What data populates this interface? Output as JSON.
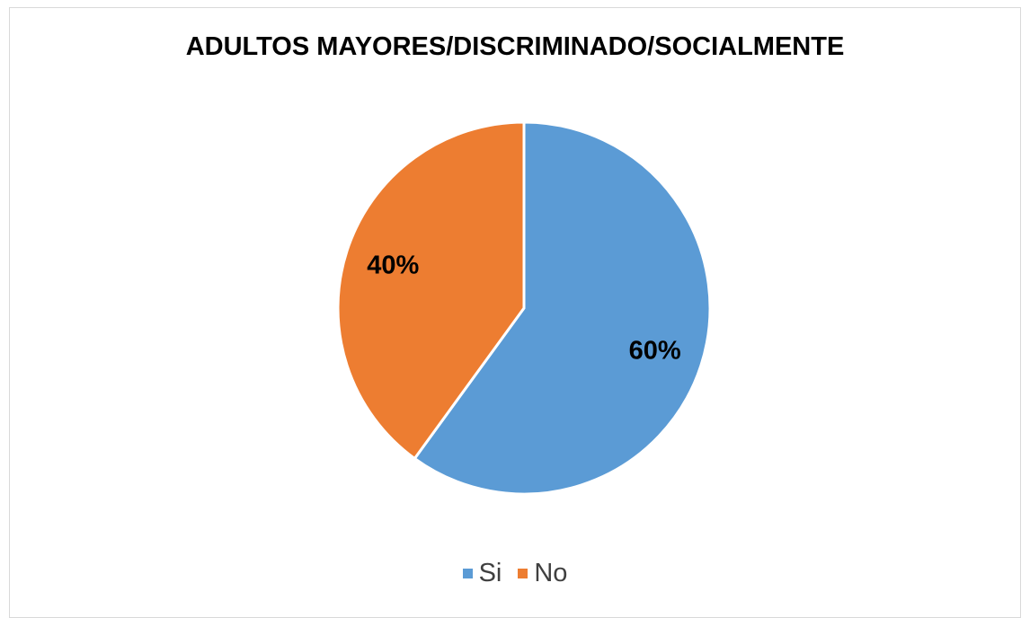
{
  "chart_data": {
    "type": "pie",
    "title": "ADULTOS MAYORES/DISCRIMINADO/SOCIALMENTE",
    "categories": [
      "Si",
      "No"
    ],
    "values": [
      60,
      40
    ],
    "data_labels": [
      "60%",
      "40%"
    ],
    "colors": [
      "#5b9bd5",
      "#ed7d31"
    ],
    "legend_position": "bottom",
    "start_angle": "top, clockwise"
  }
}
